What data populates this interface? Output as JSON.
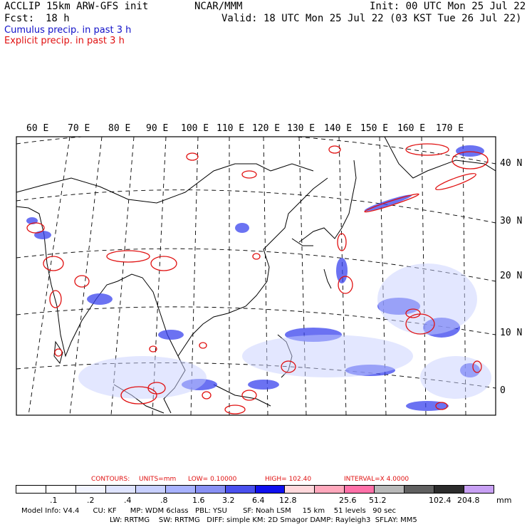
{
  "header": {
    "title_left": "ACCLIP 15km ARW-GFS init",
    "fcst_label": "Fcst:",
    "fcst_value": "18 h",
    "center": "NCAR/MMM",
    "init": "Init: 00 UTC Mon 25 Jul 22",
    "valid": "Valid: 18 UTC Mon 25 Jul 22 (03 KST Tue 26 Jul 22)",
    "legend_cumulus": "Cumulus precip. in past 3 h",
    "legend_explicit": "Explicit precip. in past 3 h"
  },
  "colors": {
    "cumulus": "#1010c8",
    "explicit": "#e01010",
    "coast": "#000000"
  },
  "map": {
    "lon_labels": [
      "60 E",
      "70 E",
      "80 E",
      "90 E",
      "100 E",
      "110 E",
      "120 E",
      "130 E",
      "140 E",
      "150 E",
      "160 E",
      "170 E"
    ],
    "lat_labels": [
      "40 N",
      "30 N",
      "20 N",
      "10 N",
      "0"
    ]
  },
  "contours": {
    "title": "CONTOURS:",
    "units": "UNITS=mm",
    "low": "LOW= 0.10000",
    "high": "HIGH= 102.40",
    "interval": "INTERVAL=X 4.0000"
  },
  "colorbar": {
    "colors": [
      "#ffffff",
      "#ffffff",
      "#f2f4ff",
      "#dfe4ff",
      "#c8d0ff",
      "#a8b2ff",
      "#8890f4",
      "#4a50ee",
      "#1010ee",
      "#ffd8dc",
      "#ffa8bc",
      "#ff70a8",
      "#b8b8b8",
      "#606060",
      "#2c2c2c",
      "#c8a0f4"
    ],
    "labels": [
      ".1",
      ".2",
      ".4",
      ".8",
      "1.6",
      "3.2",
      "6.4",
      "12.8",
      "25.6",
      "51.2",
      "102.4",
      "204.8"
    ],
    "unit": "mm"
  },
  "model_info": {
    "line1": "Model Info: V4.4      CU: KF      MP: WDM 6class   PBL: YSU       SF: Noah LSM     15 km    51 levels   90 sec",
    "line2": "LW: RRTMG    SW: RRTMG   DIFF: simple KM: 2D Smagor DAMP: Rayleigh3  SFLAY: MM5"
  }
}
